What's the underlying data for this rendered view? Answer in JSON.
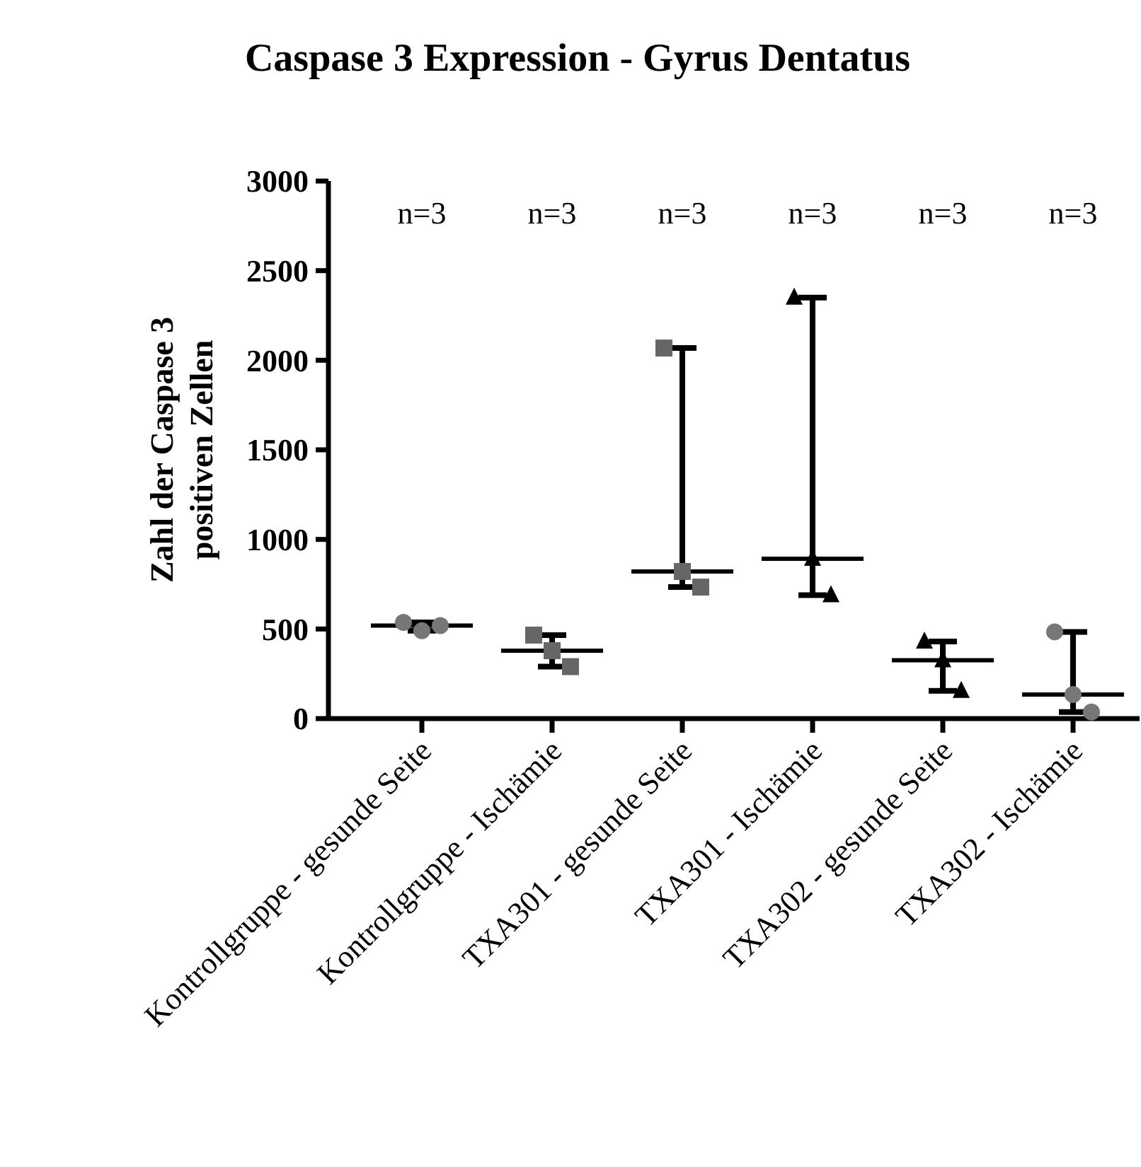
{
  "chart_data": {
    "type": "scatter",
    "title": "Caspase 3 Expression - Gyrus Dentatus",
    "ylabel": "Zahl der Caspase 3\npositiven Zellen",
    "categories": [
      "Kontrollgruppe - gesunde Seite",
      "Kontrollgruppe - Ischämie",
      "TXA301 - gesunde Seite",
      "TXA301 - Ischämie",
      "TXA302 - gesunde Seite",
      "TXA302 - Ischämie"
    ],
    "ylim": [
      0,
      3000
    ],
    "yticks": [
      0,
      500,
      1000,
      1500,
      2000,
      2500,
      3000
    ],
    "grid": false,
    "series": [
      {
        "marker": "circle",
        "color": "#777777",
        "x": [
          "Kontrollgruppe - gesunde Seite",
          "Kontrollgruppe - gesunde Seite",
          "Kontrollgruppe - gesunde Seite"
        ],
        "values": [
          537,
          490,
          519
        ]
      },
      {
        "marker": "square",
        "color": "#666666",
        "x": [
          "Kontrollgruppe - Ischämie",
          "Kontrollgruppe - Ischämie",
          "Kontrollgruppe - Ischämie"
        ],
        "values": [
          466,
          379,
          290
        ]
      },
      {
        "marker": "square",
        "color": "#666666",
        "x": [
          "TXA301 - gesunde Seite",
          "TXA301 - gesunde Seite",
          "TXA301 - gesunde Seite"
        ],
        "values": [
          2068,
          821,
          734
        ]
      },
      {
        "marker": "triangle",
        "color": "#000000",
        "x": [
          "TXA301 - Ischämie",
          "TXA301 - Ischämie",
          "TXA301 - Ischämie"
        ],
        "values": [
          2350,
          892,
          689
        ]
      },
      {
        "marker": "triangle",
        "color": "#000000",
        "x": [
          "TXA302 - gesunde Seite",
          "TXA302 - gesunde Seite",
          "TXA302 - gesunde Seite"
        ],
        "values": [
          430,
          326,
          155
        ]
      },
      {
        "marker": "circle",
        "color": "#777777",
        "x": [
          "TXA302 - Ischämie",
          "TXA302 - Ischämie",
          "TXA302 - Ischämie"
        ],
        "values": [
          484,
          134,
          37
        ]
      },
      {
        "type": "box",
        "color": "#000000",
        "boxes": [
          {
            "low": 490,
            "q1": 519,
            "median": 519,
            "q3": 519,
            "high": 537
          },
          {
            "low": 290,
            "q1": 379,
            "median": 379,
            "q3": 379,
            "high": 466
          },
          {
            "low": 734,
            "q1": 821,
            "median": 821,
            "q3": 821,
            "high": 2068
          },
          {
            "low": 689,
            "q1": 892,
            "median": 892,
            "q3": 892,
            "high": 2350
          },
          {
            "low": 155,
            "q1": 326,
            "median": 326,
            "q3": 326,
            "high": 430
          },
          {
            "low": 37,
            "q1": 134,
            "median": 134,
            "q3": 134,
            "high": 484
          }
        ]
      }
    ],
    "annotations": [
      "n=3",
      "n=3",
      "n=3",
      "n=3",
      "n=3",
      "n=3"
    ]
  }
}
